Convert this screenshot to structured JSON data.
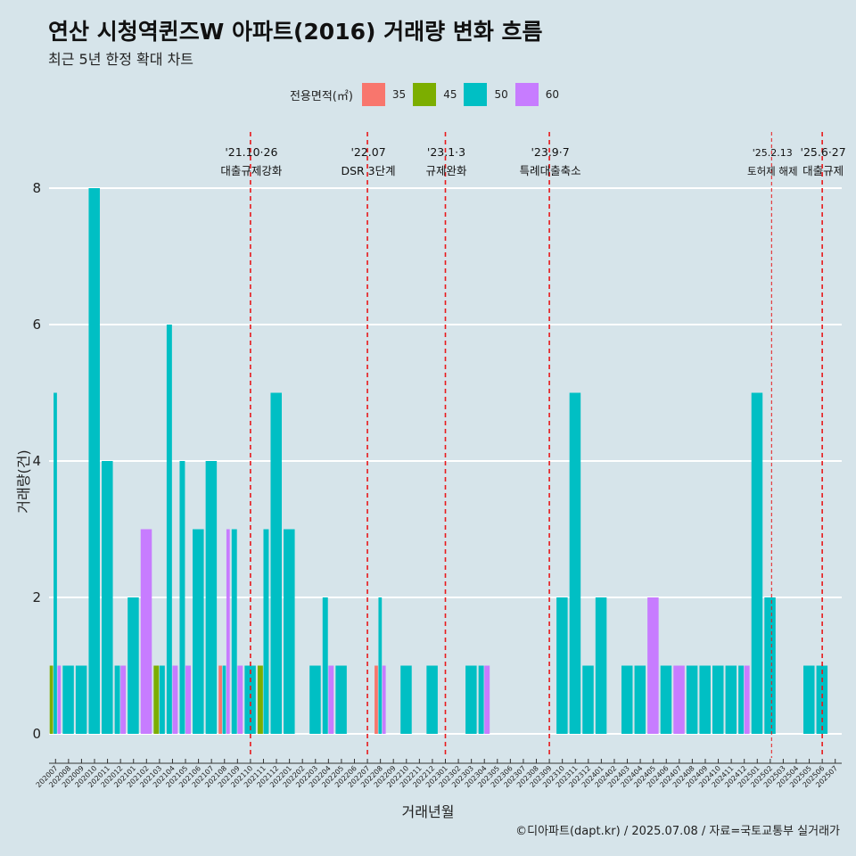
{
  "chart_data": {
    "type": "bar",
    "title": "연산 시청역퀸즈W 아파트(2016) 거래량 변화 흐름",
    "subtitle": "최근 5년 한정 확대 차트",
    "caption": "©디아파트(dapt.kr) / 2025.07.08 / 자료=국토교통부 실거래가",
    "xlabel": "거래년월",
    "ylabel": "거래량(건)",
    "ylim": [
      0,
      8
    ],
    "yticks": [
      0,
      2,
      4,
      6,
      8
    ],
    "legend_title": "전용면적(㎡)",
    "legend": [
      {
        "name": "35",
        "color": "#F8766D"
      },
      {
        "name": "45",
        "color": "#7CAE00"
      },
      {
        "name": "50",
        "color": "#00BFC4"
      },
      {
        "name": "60",
        "color": "#C77CFF"
      }
    ],
    "categories": [
      "202007",
      "202008",
      "202009",
      "202010",
      "202011",
      "202012",
      "202101",
      "202102",
      "202103",
      "202104",
      "202105",
      "202106",
      "202107",
      "202108",
      "202109",
      "202110",
      "202111",
      "202112",
      "202201",
      "202202",
      "202203",
      "202204",
      "202205",
      "202206",
      "202207",
      "202208",
      "202209",
      "202210",
      "202211",
      "202212",
      "202301",
      "202302",
      "202303",
      "202304",
      "202305",
      "202306",
      "202307",
      "202308",
      "202309",
      "202310",
      "202311",
      "202312",
      "202401",
      "202402",
      "202403",
      "202404",
      "202405",
      "202406",
      "202407",
      "202408",
      "202409",
      "202410",
      "202411",
      "202412",
      "202501",
      "202502",
      "202503",
      "202504",
      "202505",
      "202506",
      "202507"
    ],
    "series": [
      {
        "name": "35",
        "values": [
          0,
          0,
          0,
          0,
          0,
          0,
          0,
          0,
          0,
          0,
          0,
          0,
          0,
          1,
          0,
          0,
          0,
          0,
          0,
          0,
          0,
          0,
          0,
          0,
          0,
          1,
          0,
          0,
          0,
          0,
          0,
          0,
          0,
          0,
          0,
          0,
          0,
          0,
          0,
          0,
          0,
          0,
          0,
          0,
          0,
          0,
          0,
          0,
          0,
          0,
          0,
          0,
          0,
          0,
          0,
          0,
          0,
          0,
          0,
          0,
          0
        ]
      },
      {
        "name": "45",
        "values": [
          1,
          0,
          0,
          0,
          0,
          0,
          0,
          0,
          1,
          0,
          0,
          0,
          0,
          0,
          0,
          0,
          1,
          0,
          0,
          0,
          0,
          0,
          0,
          0,
          0,
          0,
          0,
          0,
          0,
          0,
          0,
          0,
          0,
          0,
          0,
          0,
          0,
          0,
          0,
          0,
          0,
          0,
          0,
          0,
          0,
          0,
          0,
          0,
          0,
          0,
          0,
          0,
          0,
          0,
          0,
          0,
          0,
          0,
          0,
          0,
          0
        ]
      },
      {
        "name": "50",
        "values": [
          5,
          1,
          1,
          8,
          4,
          1,
          2,
          0,
          1,
          6,
          4,
          3,
          4,
          1,
          3,
          1,
          3,
          5,
          3,
          0,
          1,
          2,
          1,
          0,
          0,
          2,
          0,
          1,
          0,
          1,
          0,
          0,
          1,
          1,
          0,
          0,
          0,
          0,
          0,
          2,
          5,
          1,
          2,
          0,
          1,
          1,
          0,
          1,
          0,
          1,
          1,
          1,
          1,
          1,
          5,
          2,
          0,
          0,
          1,
          1,
          0
        ]
      },
      {
        "name": "60",
        "values": [
          1,
          0,
          0,
          0,
          0,
          1,
          0,
          3,
          0,
          1,
          1,
          0,
          0,
          3,
          1,
          0,
          0,
          0,
          0,
          0,
          0,
          1,
          0,
          0,
          0,
          1,
          0,
          0,
          0,
          0,
          0,
          0,
          0,
          1,
          0,
          0,
          0,
          0,
          0,
          0,
          0,
          0,
          0,
          0,
          0,
          0,
          2,
          0,
          1,
          0,
          0,
          0,
          0,
          1,
          0,
          0,
          0,
          0,
          0,
          0,
          0
        ]
      }
    ],
    "annotations": [
      {
        "date": "'21.10·26",
        "label": "대출규제강화",
        "at": 15.5,
        "size": "normal"
      },
      {
        "date": "'22.07",
        "label": "DSR 3단계",
        "at": 24.5,
        "size": "normal"
      },
      {
        "date": "'23.1·3",
        "label": "규제완화",
        "at": 30.5,
        "size": "normal"
      },
      {
        "date": "'23.9·7",
        "label": "특례대출축소",
        "at": 38.5,
        "size": "normal"
      },
      {
        "date": "'25.2.13",
        "label": "토허제 해제",
        "at": 55.6,
        "size": "small"
      },
      {
        "date": "'25.6·27",
        "label": "대출규제",
        "at": 59.5,
        "size": "normal"
      }
    ]
  }
}
